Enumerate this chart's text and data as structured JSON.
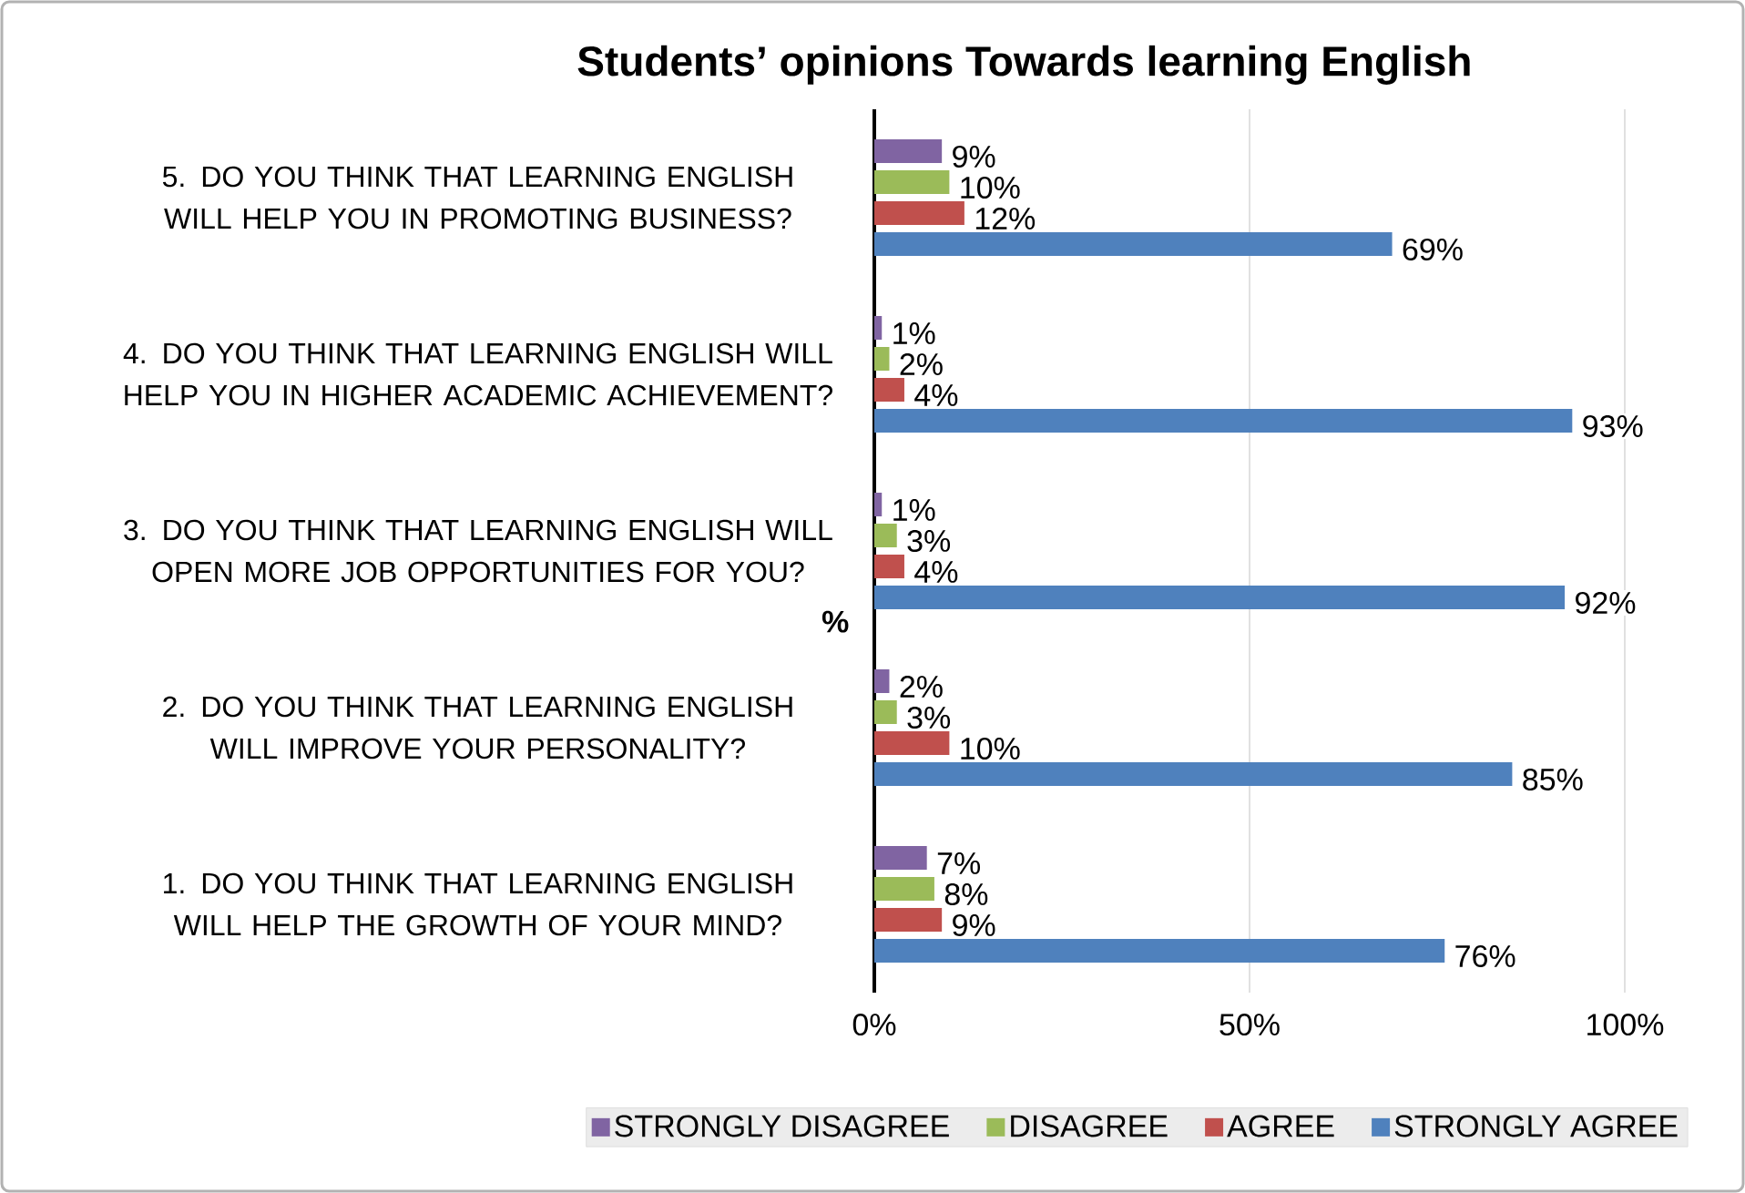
{
  "chart_data": {
    "type": "bar",
    "orientation": "horizontal",
    "title": "Students’ opinions Towards learning English",
    "ylabel": "%",
    "categories": [
      "5. DO YOU THINK THAT LEARNING ENGLISH WILL HELP YOU IN PROMOTING BUSINESS?",
      "4. DO YOU THINK THAT LEARNING ENGLISH WILL HELP YOU IN HIGHER ACADEMIC ACHIEVEMENT?",
      "3. DO YOU THINK THAT LEARNING ENGLISH WILL OPEN MORE JOB OPPORTUNITIES FOR YOU?",
      "2. DO YOU THINK THAT LEARNING ENGLISH WILL IMPROVE YOUR PERSONALITY?",
      "1. DO YOU THINK THAT LEARNING ENGLISH WILL HELP THE GROWTH OF YOUR MIND?"
    ],
    "series": [
      {
        "name": "STRONGLY DISAGREE",
        "color": "#8064a2",
        "values": [
          9,
          1,
          1,
          2,
          7
        ],
        "value_labels": [
          "9%",
          "1%",
          "1%",
          "2%",
          "7%"
        ]
      },
      {
        "name": "DISAGREE",
        "color": "#9bbb59",
        "values": [
          10,
          2,
          3,
          3,
          8
        ],
        "value_labels": [
          "10%",
          "2%",
          "3%",
          "3%",
          "8%"
        ]
      },
      {
        "name": "AGREE",
        "color": "#c0504d",
        "values": [
          12,
          4,
          4,
          10,
          9
        ],
        "value_labels": [
          "12%",
          "4%",
          "4%",
          "10%",
          "9%"
        ]
      },
      {
        "name": "STRONGLY AGREE",
        "color": "#4f81bd",
        "values": [
          69,
          93,
          92,
          85,
          76
        ],
        "value_labels": [
          "69%",
          "93%",
          "92%",
          "85%",
          "76%"
        ]
      }
    ],
    "xlim": [
      0,
      100
    ],
    "xticks": [
      {
        "value": 0,
        "label": "0%"
      },
      {
        "value": 50,
        "label": "50%"
      },
      {
        "value": 100,
        "label": "100%"
      }
    ],
    "grid": "x",
    "legend": "bottom"
  }
}
